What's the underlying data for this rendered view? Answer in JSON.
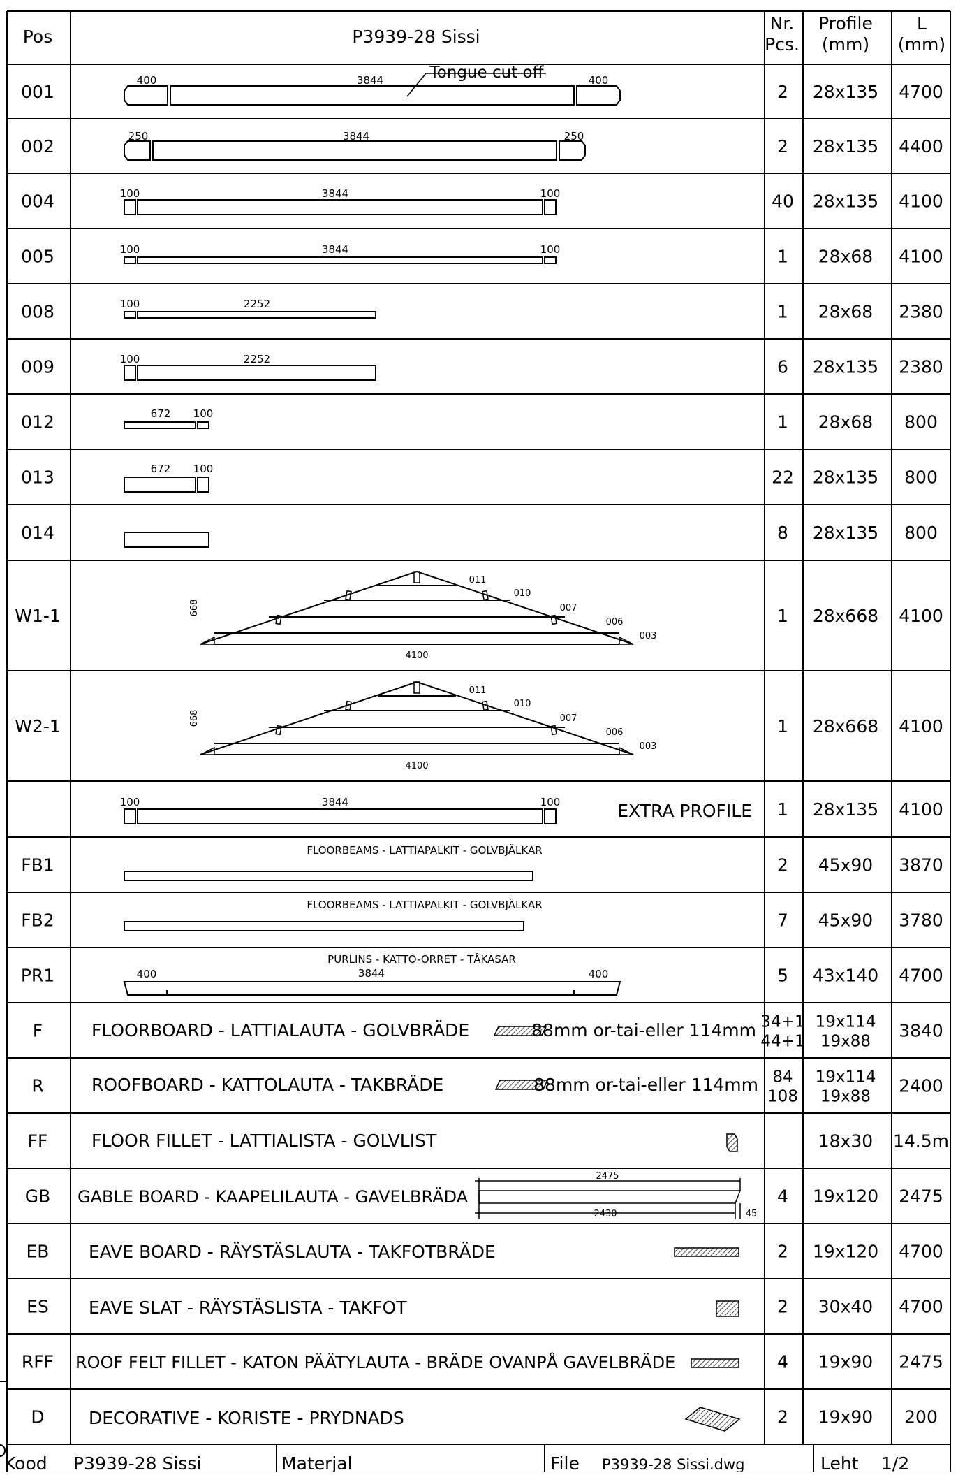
{
  "header": {
    "pos": "Pos",
    "title": "P3939-28 Sissi",
    "nr1": "Nr.",
    "nr2": "Pcs.",
    "prof1": "Profile",
    "prof2": "(mm)",
    "l1": "L",
    "l2": "(mm)"
  },
  "rows": [
    {
      "pos": "001",
      "pcs": "2",
      "profile": "28x135",
      "length": "4700",
      "dims": [
        "400",
        "3844",
        "400"
      ],
      "note": "Tongue cut off"
    },
    {
      "pos": "002",
      "pcs": "2",
      "profile": "28x135",
      "length": "4400",
      "dims": [
        "250",
        "3844",
        "250"
      ]
    },
    {
      "pos": "004",
      "pcs": "40",
      "profile": "28x135",
      "length": "4100",
      "dims": [
        "100",
        "3844",
        "100"
      ]
    },
    {
      "pos": "005",
      "pcs": "1",
      "profile": "28x68",
      "length": "4100",
      "dims": [
        "100",
        "3844",
        "100"
      ]
    },
    {
      "pos": "008",
      "pcs": "1",
      "profile": "28x68",
      "length": "2380",
      "dims": [
        "100",
        "2252"
      ]
    },
    {
      "pos": "009",
      "pcs": "6",
      "profile": "28x135",
      "length": "2380",
      "dims": [
        "100",
        "2252"
      ]
    },
    {
      "pos": "012",
      "pcs": "1",
      "profile": "28x68",
      "length": "800",
      "dims": [
        "672",
        "100"
      ]
    },
    {
      "pos": "013",
      "pcs": "22",
      "profile": "28x135",
      "length": "800",
      "dims": [
        "672",
        "100"
      ]
    },
    {
      "pos": "014",
      "pcs": "8",
      "profile": "28x135",
      "length": "800"
    },
    {
      "pos": "W1-1",
      "pcs": "1",
      "profile": "28x668",
      "length": "4100",
      "height": "668",
      "width": "4100",
      "parts": [
        "011",
        "010",
        "007",
        "006",
        "003"
      ]
    },
    {
      "pos": "W2-1",
      "pcs": "1",
      "profile": "28x668",
      "length": "4100",
      "height": "668",
      "width": "4100",
      "parts": [
        "011",
        "010",
        "007",
        "006",
        "003"
      ]
    },
    {
      "pos": "",
      "pcs": "1",
      "profile": "28x135",
      "length": "4100",
      "dims": [
        "100",
        "3844",
        "100"
      ],
      "label": "EXTRA PROFILE"
    },
    {
      "pos": "FB1",
      "pcs": "2",
      "profile": "45x90",
      "length": "3870",
      "caption": "FLOORBEAMS - LATTIAPALKIT - GOLVBJÄLKAR"
    },
    {
      "pos": "FB2",
      "pcs": "7",
      "profile": "45x90",
      "length": "3780",
      "caption": "FLOORBEAMS - LATTIAPALKIT - GOLVBJÄLKAR"
    },
    {
      "pos": "PR1",
      "pcs": "5",
      "profile": "43x140",
      "length": "4700",
      "caption": "PURLINS - KATTO-ORRET - TÅKASAR",
      "dims": [
        "400",
        "3844",
        "400"
      ]
    },
    {
      "pos": "F",
      "pcs": "34+1",
      "pcs2": "44+1",
      "profile": "19x114",
      "profile2": "19x88",
      "length": "3840",
      "desc": "FLOORBOARD - LATTIALAUTA - GOLVBRÄDE",
      "note": "88mm or-tai-eller 114mm"
    },
    {
      "pos": "R",
      "pcs": "84",
      "pcs2": "108",
      "profile": "19x114",
      "profile2": "19x88",
      "length": "2400",
      "desc": "ROOFBOARD - KATTOLAUTA - TAKBRÄDE",
      "note": "88mm or-tai-eller 114mm"
    },
    {
      "pos": "FF",
      "pcs": "",
      "profile": "18x30",
      "length": "14.5m",
      "desc": "FLOOR FILLET - LATTIALISTA - GOLVLIST"
    },
    {
      "pos": "GB",
      "pcs": "4",
      "profile": "19x120",
      "length": "2475",
      "desc": "GABLE BOARD - KAAPELILAUTA - GAVELBRÄDA",
      "dims": [
        "2475",
        "2430",
        "45"
      ]
    },
    {
      "pos": "EB",
      "pcs": "2",
      "profile": "19x120",
      "length": "4700",
      "desc": "EAVE BOARD - RÄYSTÄSLAUTA - TAKFOTBRÄDE"
    },
    {
      "pos": "ES",
      "pcs": "2",
      "profile": "30x40",
      "length": "4700",
      "desc": "EAVE SLAT - RÄYSTÄSLISTA - TAKFOT"
    },
    {
      "pos": "RFF",
      "pcs": "4",
      "profile": "19x90",
      "length": "2475",
      "desc": "ROOF FELT FILLET - KATON PÄÄTYLAUTA - BRÄDE OVANPÅ GAVELBRÄDE"
    },
    {
      "pos": "D",
      "pcs": "2",
      "profile": "19x90",
      "length": "200",
      "desc": "DECORATIVE - KORISTE - PRYDNADS"
    }
  ],
  "footer": {
    "kood_label": "Kood",
    "kood": "P3939-28 Sissi",
    "materjal_label": "Materjal",
    "file_label": "File",
    "file": "P3939-28 Sissi.dwg",
    "leht_label": "Leht",
    "leht": "1/2"
  }
}
